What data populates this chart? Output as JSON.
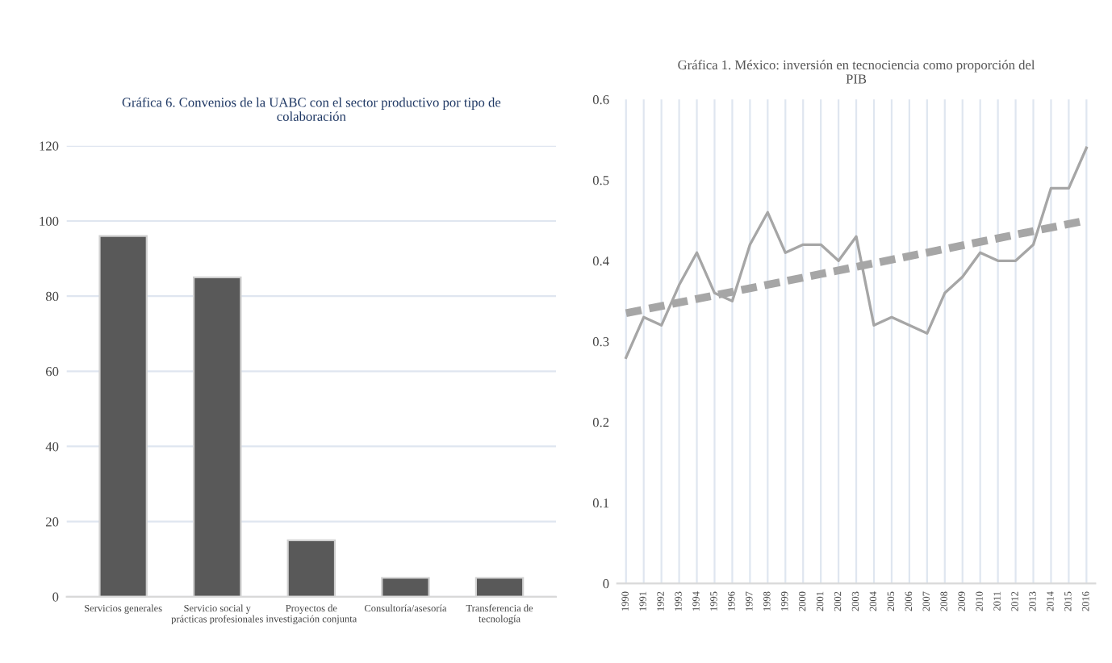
{
  "chart_data": [
    {
      "type": "bar",
      "title": "Gráfica 6. Convenios de la UABC con el sector productivo por tipo de\ncolaboración",
      "categories": [
        "Servicios generales",
        "Servicio social y\nprácticas profesionales",
        "Proyectos de\ninvestigación conjunta",
        "Consultoría/asesoría",
        "Transferencia de\ntecnología"
      ],
      "values": [
        96,
        85,
        15,
        5,
        5
      ],
      "color": "#595959",
      "ylim": [
        0,
        120
      ],
      "yticks": [
        0,
        20,
        40,
        60,
        80,
        100,
        120
      ],
      "grid": "y"
    },
    {
      "type": "line",
      "title": "Gráfica 1. México: inversión en tecnociencia como proporción del\nPIB",
      "x": [
        1990,
        1991,
        1992,
        1993,
        1994,
        1995,
        1996,
        1997,
        1998,
        1999,
        2000,
        2001,
        2002,
        2003,
        2004,
        2005,
        2006,
        2007,
        2008,
        2009,
        2010,
        2011,
        2012,
        2013,
        2014,
        2015,
        2016
      ],
      "series": [
        {
          "color": "#a6a6a6",
          "values": [
            0.28,
            0.33,
            0.32,
            0.37,
            0.41,
            0.36,
            0.35,
            0.42,
            0.46,
            0.41,
            0.42,
            0.42,
            0.4,
            0.43,
            0.32,
            0.33,
            0.32,
            0.31,
            0.36,
            0.38,
            0.41,
            0.4,
            0.4,
            0.42,
            0.49,
            0.49,
            0.54
          ]
        },
        {
          "color": "#a6a6a6",
          "x": [
            1990,
            2016
          ],
          "values": [
            0.335,
            0.45
          ],
          "line_style": "dashed"
        }
      ],
      "xlim": [
        1989.5,
        2016.5
      ],
      "xticks": [
        1990,
        1991,
        1992,
        1993,
        1994,
        1995,
        1996,
        1997,
        1998,
        1999,
        2000,
        2001,
        2002,
        2003,
        2004,
        2005,
        2006,
        2007,
        2008,
        2009,
        2010,
        2011,
        2012,
        2013,
        2014,
        2015,
        2016
      ],
      "ylim": [
        0,
        0.6
      ],
      "yticks": [
        0,
        0.1,
        0.2,
        0.3,
        0.4,
        0.5,
        0.6
      ],
      "grid": "x"
    }
  ]
}
